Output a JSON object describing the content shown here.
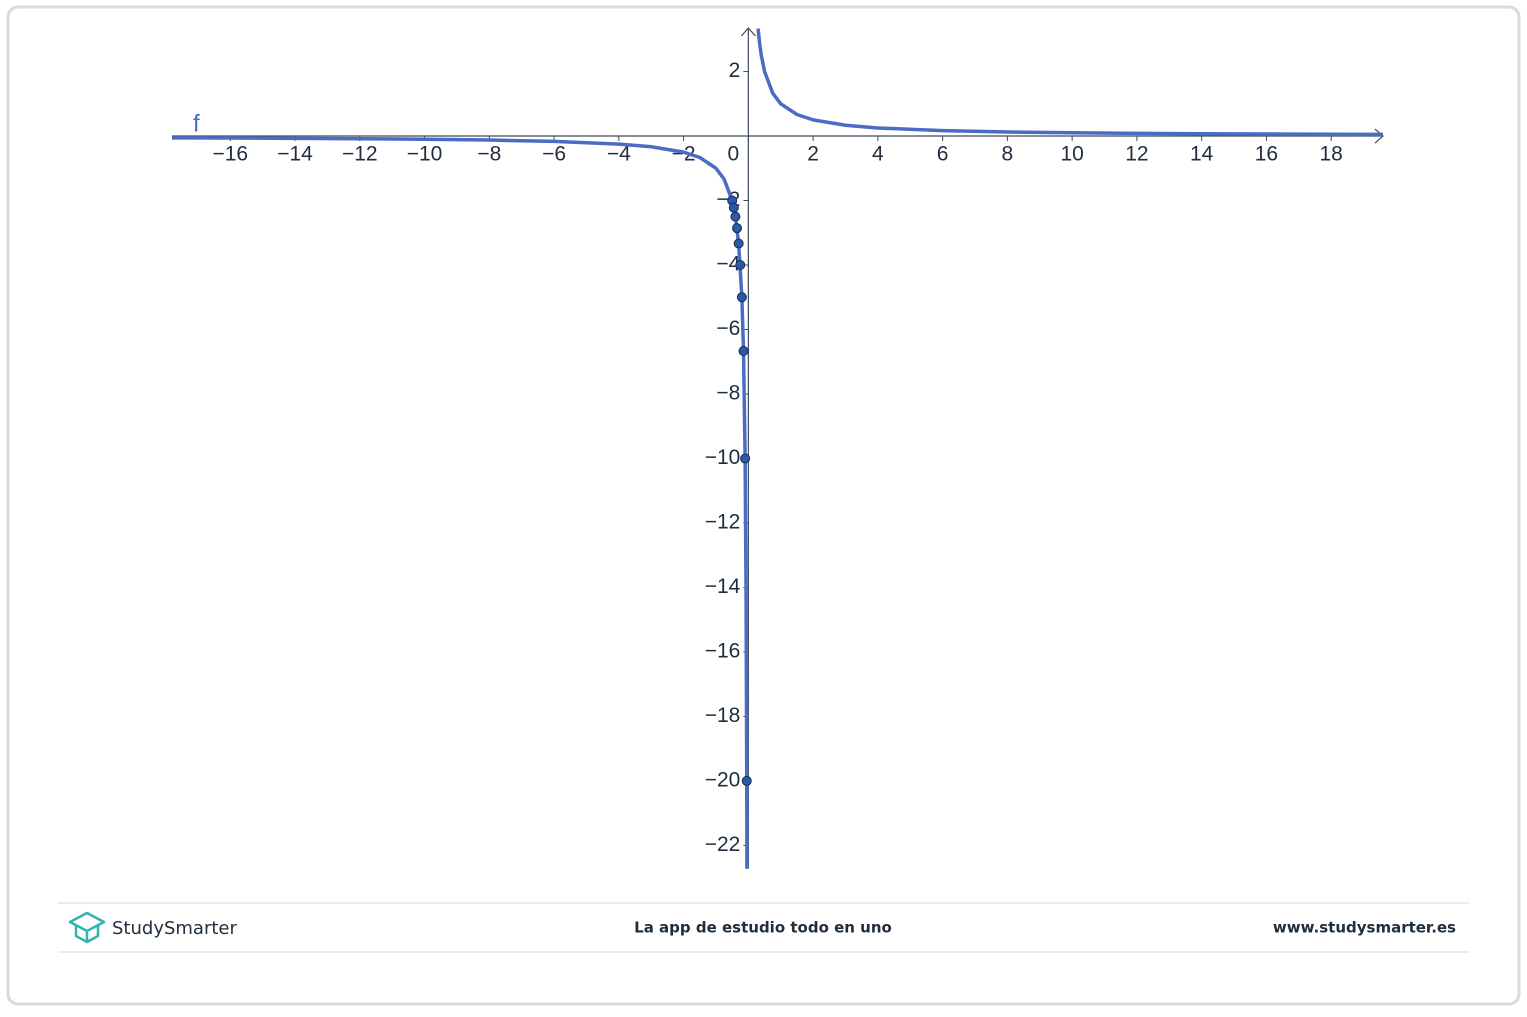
{
  "chart_data": {
    "type": "function-plot",
    "function_label": "f",
    "line_color": "#4a6cc4",
    "point_color": "#2a5aa8",
    "xlim": [
      -17.8,
      19.6
    ],
    "ylim": [
      -22.7,
      3.35
    ],
    "xticks": [
      {
        "value": -16,
        "label": "−16"
      },
      {
        "value": -14,
        "label": "−14"
      },
      {
        "value": -12,
        "label": "−12"
      },
      {
        "value": -10,
        "label": "−10"
      },
      {
        "value": -8,
        "label": "−8"
      },
      {
        "value": -6,
        "label": "−6"
      },
      {
        "value": -4,
        "label": "−4"
      },
      {
        "value": -2,
        "label": "−2"
      },
      0,
      2,
      4,
      6,
      8,
      10,
      12,
      14,
      16,
      18
    ],
    "yticks": [
      2,
      {
        "value": -2,
        "label": "−2"
      },
      {
        "value": -4,
        "label": "−4"
      },
      {
        "value": -6,
        "label": "−6"
      },
      {
        "value": -8,
        "label": "−8"
      },
      {
        "value": -10,
        "label": "−10"
      },
      {
        "value": -12,
        "label": "−12"
      },
      {
        "value": -14,
        "label": "−14"
      },
      {
        "value": -16,
        "label": "−16"
      },
      {
        "value": -18,
        "label": "−18"
      },
      {
        "value": -20,
        "label": "−20"
      },
      {
        "value": -22,
        "label": "−22"
      }
    ],
    "curve": {
      "x": [
        -17.8,
        -16,
        -14,
        -12,
        -10,
        -8,
        -6,
        -4,
        -3,
        -2,
        -1.5,
        -1,
        -0.75,
        -0.5,
        -0.4,
        -0.3,
        -0.2,
        -0.15,
        -0.1,
        -0.07,
        -0.05,
        -0.044,
        null,
        0.3,
        0.35,
        0.4,
        0.5,
        0.75,
        1,
        1.5,
        2,
        3,
        4,
        6,
        8,
        10,
        12,
        14,
        16,
        18,
        19.6
      ],
      "values": [
        -0.0562,
        -0.0625,
        -0.0714,
        -0.0833,
        -0.1,
        -0.125,
        -0.1667,
        -0.25,
        -0.3333,
        -0.5,
        -0.6667,
        -1,
        -1.3333,
        -2,
        -2.5,
        -3.3333,
        -5,
        -6.6667,
        -10,
        -14.2857,
        -20,
        -22.7273,
        null,
        3.3333,
        2.8571,
        2.5,
        2,
        1.3333,
        1,
        0.6667,
        0.5,
        0.3333,
        0.25,
        0.1667,
        0.125,
        0.1,
        0.0833,
        0.0714,
        0.0625,
        0.0556,
        0.051
      ]
    },
    "points": {
      "x": [
        -0.5,
        -0.45,
        -0.4,
        -0.35,
        -0.3,
        -0.25,
        -0.2,
        -0.15,
        -0.1,
        -0.05
      ],
      "values": [
        -2,
        -2.2222,
        -2.5,
        -2.8571,
        -3.3333,
        -4,
        -5,
        -6.6667,
        -10,
        -20
      ]
    }
  },
  "footer": {
    "brand": "StudySmarter",
    "tagline": "La app de estudio todo en uno",
    "url": "www.studysmarter.es"
  }
}
